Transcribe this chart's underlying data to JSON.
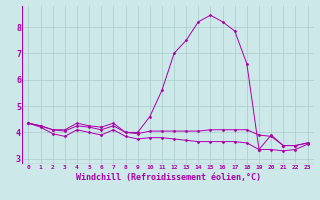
{
  "background_color": "#cce8e8",
  "grid_color": "#aacccc",
  "line_color": "#aa00aa",
  "xlim": [
    -0.5,
    23.5
  ],
  "ylim": [
    2.8,
    8.8
  ],
  "xtick_labels": [
    "0",
    "1",
    "2",
    "3",
    "4",
    "5",
    "6",
    "7",
    "8",
    "9",
    "10",
    "11",
    "12",
    "13",
    "14",
    "15",
    "16",
    "17",
    "18",
    "19",
    "20",
    "21",
    "22",
    "23"
  ],
  "yticks": [
    3,
    4,
    5,
    6,
    7,
    8
  ],
  "xlabel": "Windchill (Refroidissement éolien,°C)",
  "xlabel_fontsize": 6.0,
  "xtick_fontsize": 4.5,
  "ytick_fontsize": 6.0,
  "series": [
    [
      4.35,
      4.25,
      4.1,
      4.1,
      4.35,
      4.25,
      4.2,
      4.35,
      4.0,
      4.0,
      4.6,
      5.6,
      7.0,
      7.5,
      8.2,
      8.45,
      8.2,
      7.85,
      6.6,
      3.35,
      3.9,
      3.5,
      3.5,
      3.6
    ],
    [
      4.35,
      4.25,
      4.1,
      4.05,
      4.25,
      4.2,
      4.1,
      4.25,
      4.0,
      3.95,
      4.05,
      4.05,
      4.05,
      4.05,
      4.05,
      4.1,
      4.1,
      4.1,
      4.1,
      3.9,
      3.85,
      3.5,
      3.5,
      3.6
    ],
    [
      4.35,
      4.2,
      3.95,
      3.85,
      4.1,
      4.0,
      3.9,
      4.1,
      3.85,
      3.75,
      3.8,
      3.8,
      3.75,
      3.7,
      3.65,
      3.65,
      3.65,
      3.65,
      3.6,
      3.35,
      3.35,
      3.3,
      3.35,
      3.55
    ]
  ]
}
